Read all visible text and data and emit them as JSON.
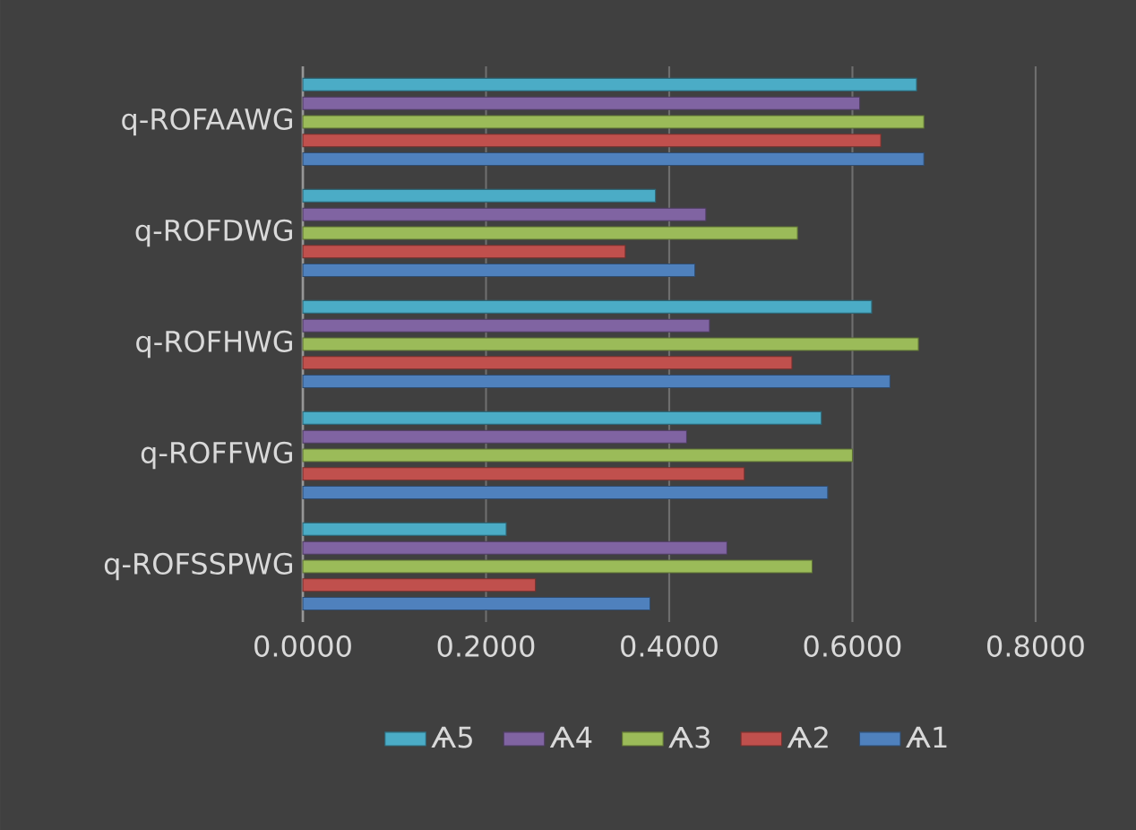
{
  "chart_data": {
    "type": "bar",
    "orientation": "horizontal",
    "categories": [
      "q-ROFAAWG",
      "q-ROFDWG",
      "q-ROFHWG",
      "q-ROFFWG",
      "q-ROFSSPWG"
    ],
    "series": [
      {
        "name": "Ѧ1",
        "color": "#4f81bd",
        "values": [
          0.678,
          0.428,
          0.641,
          0.573,
          0.379
        ]
      },
      {
        "name": "Ѧ2",
        "color": "#c0504d",
        "values": [
          0.631,
          0.352,
          0.534,
          0.482,
          0.254
        ]
      },
      {
        "name": "Ѧ3",
        "color": "#9bbb59",
        "values": [
          0.678,
          0.54,
          0.672,
          0.6,
          0.556
        ]
      },
      {
        "name": "Ѧ4",
        "color": "#8064a2",
        "values": [
          0.608,
          0.44,
          0.444,
          0.419,
          0.463
        ]
      },
      {
        "name": "Ѧ5",
        "color": "#4bacc6",
        "values": [
          0.67,
          0.385,
          0.621,
          0.566,
          0.222
        ]
      }
    ],
    "xlim": [
      0,
      0.8
    ],
    "xticks": [
      {
        "value": 0,
        "label": "0.0000"
      },
      {
        "value": 0.2,
        "label": "0.2000"
      },
      {
        "value": 0.4,
        "label": "0.4000"
      },
      {
        "value": 0.6,
        "label": "0.6000"
      },
      {
        "value": 0.8,
        "label": "0.8000"
      }
    ],
    "grid": "x",
    "legend": "bottom"
  }
}
